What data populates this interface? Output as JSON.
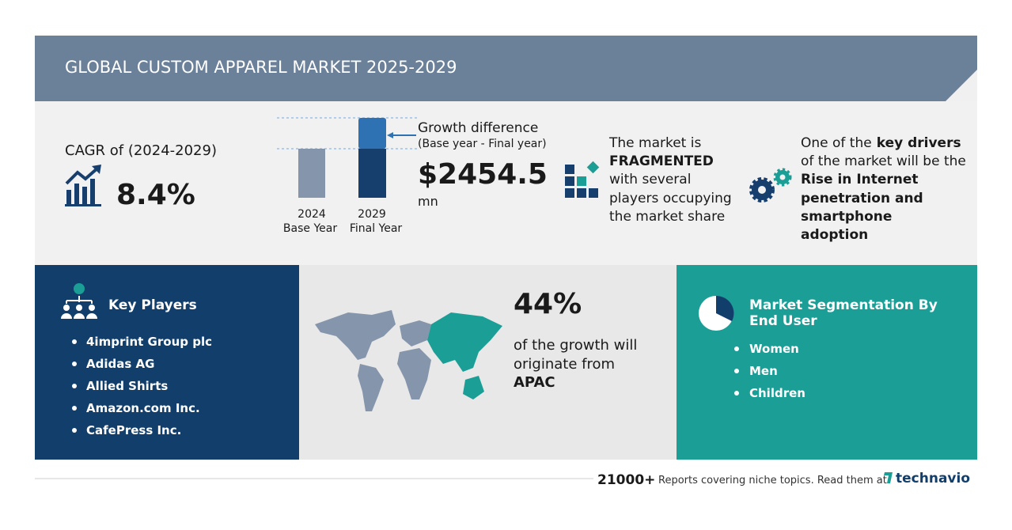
{
  "header": {
    "title": "GLOBAL CUSTOM APPAREL MARKET 2025-2029"
  },
  "cagr": {
    "label": "CAGR of (2024-2029)",
    "value": "8.4%"
  },
  "growth": {
    "base_year": "2024",
    "base_label": "Base Year",
    "final_year": "2029",
    "final_label": "Final Year",
    "label": "Growth difference",
    "sublabel": "(Base year - Final year)",
    "value": "$2454.5",
    "unit": "mn"
  },
  "market": {
    "lines": [
      "The market is",
      "FRAGMENTED",
      "with several",
      "players occupying",
      "the market share"
    ]
  },
  "drivers": {
    "lines": [
      "One of the",
      "key drivers",
      "of the market will be the",
      "Rise in Internet",
      "penetration and",
      "smartphone",
      "adoption"
    ]
  },
  "key_players": {
    "title": "Key Players",
    "items": [
      "4imprint Group plc",
      "Adidas AG",
      "Allied Shirts",
      "Amazon.com Inc.",
      "CafePress Inc."
    ]
  },
  "region": {
    "value": "44%",
    "lines": [
      "of the growth will",
      "originate from",
      "APAC"
    ]
  },
  "segmentation": {
    "title_lines": [
      "Market Segmentation By",
      "End User"
    ],
    "items": [
      "Women",
      "Men",
      "Children"
    ]
  },
  "footer": {
    "count": "21000+",
    "text": "Reports covering niche topics. Read them at",
    "brand": "technavio"
  }
}
